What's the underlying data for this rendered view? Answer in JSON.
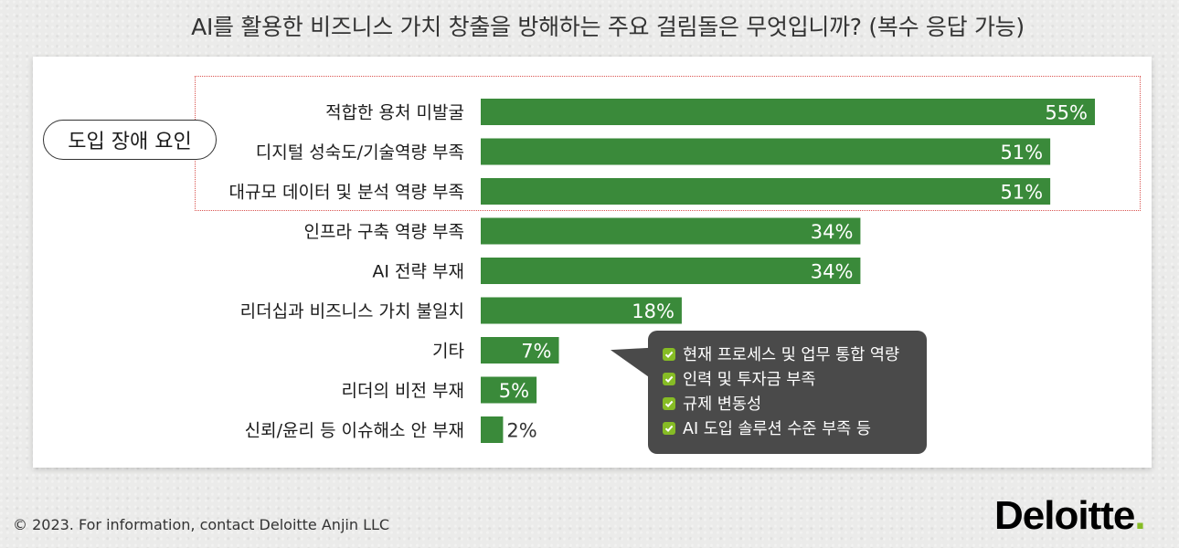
{
  "title": "AI를 활용한 비즈니스 가치 창출을 방해하는 주요 걸림돌은 무엇입니까? (복수 응답 가능)",
  "group_label": "도입 장애 요인",
  "chart_data": {
    "type": "bar",
    "orientation": "horizontal",
    "categories": [
      "적합한 용처 미발굴",
      "디지털 성숙도/기술역량 부족",
      "대규모 데이터 및 분석 역량 부족",
      "인프라 구축 역량 부족",
      "AI 전략 부재",
      "리더십과 비즈니스 가치 불일치",
      "기타",
      "리더의 비전 부재",
      "신뢰/윤리 등 이슈해소 안 부재"
    ],
    "values": [
      55,
      51,
      51,
      34,
      34,
      18,
      7,
      5,
      2
    ],
    "value_labels": [
      "55%",
      "51%",
      "51%",
      "34%",
      "34%",
      "18%",
      "7%",
      "5%",
      "2%"
    ],
    "unit": "%",
    "title": "AI를 활용한 비즈니스 가치 창출을 방해하는 주요 걸림돌은 무엇입니까? (복수 응답 가능)",
    "xlabel": "",
    "ylabel": "",
    "xlim": [
      0,
      55
    ],
    "grid": false,
    "bar_color": "#3a8a3a",
    "highlight_group": {
      "label": "도입 장애 요인",
      "categories": [
        0,
        1,
        2
      ]
    }
  },
  "callout": {
    "items": [
      "현재 프로세스 및 업무 통합 역량",
      "인력 및 투자금 부족",
      "규제 변동성",
      "AI 도입 솔루션 수준 부족 등"
    ]
  },
  "footer": "© 2023. For information, contact Deloitte Anjin LLC",
  "logo": {
    "text": "Deloitte",
    "dot": "."
  },
  "colors": {
    "bar": "#3a8a3a",
    "callout_bg": "#4a4a4a",
    "brand_green": "#86bc25",
    "highlight_border": "#d9534f"
  }
}
